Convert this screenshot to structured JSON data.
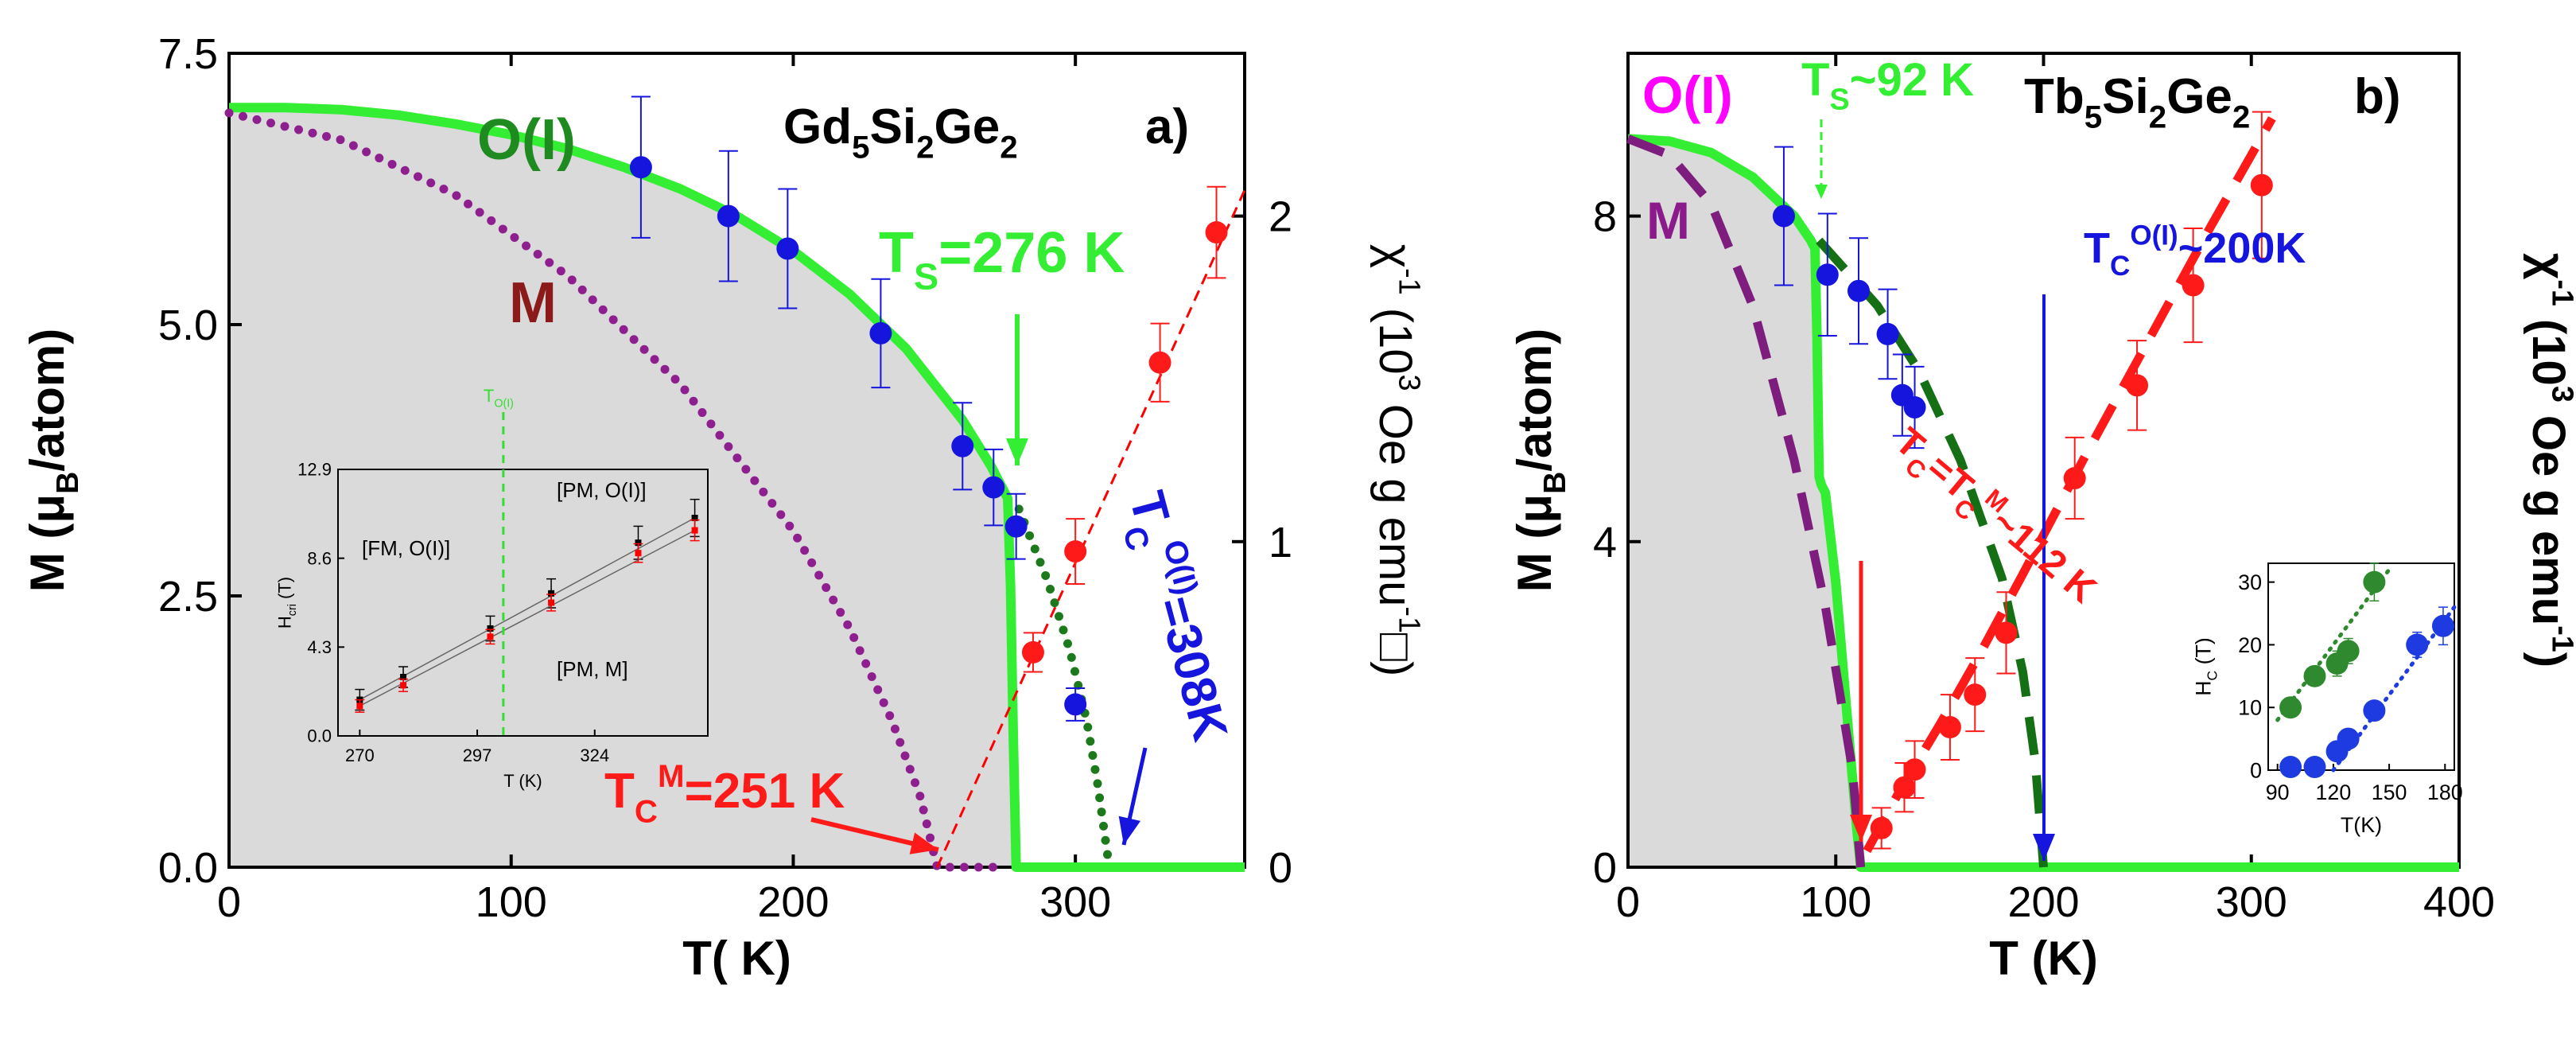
{
  "chart_data": [
    {
      "type": "line",
      "panel_label": "a)",
      "compound_parts": [
        "Gd",
        "5",
        "Si",
        "2",
        "Ge",
        "2"
      ],
      "xlabel": "T( K)",
      "ylabel_parts": [
        "M (μ",
        "B",
        "/atom)"
      ],
      "y2label_parts": [
        "χ",
        "-1",
        " (10",
        "3",
        " Oe g emu",
        "-1",
        "□)"
      ],
      "xlim": [
        0,
        360
      ],
      "ylim": [
        0,
        7.5
      ],
      "y2lim": [
        0,
        2.5
      ],
      "x_ticks": [
        0,
        100,
        200,
        300
      ],
      "y_ticks": [
        "0.0",
        "2.5",
        "5.0",
        "7.5"
      ],
      "y2_ticks": [
        "0",
        "1",
        "2"
      ],
      "phase_labels": {
        "oi": "O(I)",
        "m": "M",
        "ts": {
          "main": "T",
          "sub": "S",
          "rest": "=276 K"
        },
        "tc_oi": {
          "main": "T",
          "sub": "C",
          "sup": "O(I)",
          "rest": "=308K"
        },
        "tc_m": {
          "main": "T",
          "sub": "C",
          "sup": "M",
          "rest": "=251 K"
        }
      },
      "series": [
        {
          "color": "#33ee33",
          "style": "solid",
          "x": [
            0,
            20,
            40,
            60,
            80,
            100,
            120,
            140,
            160,
            180,
            200,
            220,
            240,
            260,
            270,
            276,
            277,
            278,
            279,
            280,
            360
          ],
          "y": [
            7.0,
            7.0,
            6.98,
            6.93,
            6.85,
            6.75,
            6.62,
            6.45,
            6.25,
            6.0,
            5.68,
            5.28,
            4.78,
            4.12,
            3.7,
            3.4,
            2.6,
            1.2,
            0.0,
            0.0,
            0.0
          ]
        },
        {
          "color": "#1c7a1c",
          "style": "dotted",
          "x": [
            280,
            290,
            298,
            304,
            308,
            312
          ],
          "y": [
            3.3,
            2.65,
            2.0,
            1.35,
            0.75,
            0.0
          ]
        },
        {
          "color": "#8e1f8e",
          "style": "dotted",
          "x": [
            0,
            40,
            80,
            120,
            160,
            200,
            220,
            235,
            245,
            251,
            275
          ],
          "y": [
            6.95,
            6.7,
            6.2,
            5.45,
            4.45,
            3.1,
            2.2,
            1.35,
            0.65,
            0.0,
            0.0
          ]
        },
        {
          "color": "#ff0000",
          "style": "dashed",
          "axis": "right",
          "x": [
            251,
            360
          ],
          "y": [
            0,
            2.08
          ]
        },
        {
          "color": "#1515dd",
          "style": "markers",
          "axis": "left",
          "x": [
            146,
            177,
            198,
            231,
            260,
            271,
            279,
            300
          ],
          "y": [
            6.45,
            6.0,
            5.7,
            4.92,
            3.88,
            3.5,
            3.14,
            1.5
          ],
          "err": [
            0.65,
            0.6,
            0.55,
            0.5,
            0.4,
            0.35,
            0.3,
            0.15
          ]
        },
        {
          "color": "#ff1a1a",
          "style": "markers",
          "axis": "right",
          "x": [
            285,
            300,
            330,
            350
          ],
          "y": [
            0.66,
            0.97,
            1.55,
            1.95
          ],
          "err": [
            0.06,
            0.1,
            0.12,
            0.14
          ]
        }
      ],
      "inset": {
        "xlabel": "T (K)",
        "ylabel": "H",
        "ylabel_sub": "cri",
        "ylabel_rest": " (T)",
        "xlim": [
          265,
          350
        ],
        "ylim": [
          0,
          12.9
        ],
        "x_ticks": [
          "270",
          "297",
          "324"
        ],
        "y_ticks": [
          "0.0",
          "4.3",
          "8.6",
          "12.9"
        ],
        "region_labels": {
          "fm_oi": "[FM, O(I)]",
          "pm_oi": "[PM, O(I)]",
          "pm_m": "[PM, M]"
        },
        "t_label": {
          "main": "T",
          "sub": "O(I)"
        },
        "vline_x": 303,
        "series": [
          {
            "color": "#000000",
            "x": [
              270,
              280,
              300,
              314,
              334,
              347
            ],
            "y": [
              1.75,
              2.85,
              5.2,
              6.9,
              9.35,
              10.55
            ],
            "err": [
              0.5,
              0.5,
              0.6,
              0.7,
              0.8,
              0.9
            ]
          },
          {
            "color": "#ff0000",
            "x": [
              270,
              280,
              300,
              314,
              334,
              347
            ],
            "y": [
              1.45,
              2.45,
              4.8,
              6.45,
              8.85,
              9.95
            ],
            "err": [
              0.3,
              0.3,
              0.35,
              0.4,
              0.45,
              0.5
            ]
          }
        ]
      }
    },
    {
      "type": "line",
      "panel_label": "b)",
      "compound_parts": [
        "Tb",
        "5",
        "Si",
        "2",
        "Ge",
        "2"
      ],
      "xlabel": "T (K)",
      "ylabel_parts": [
        "M (μ",
        "B",
        "/atom)"
      ],
      "y2label_parts": [
        "χ",
        "-1",
        " (10",
        "3",
        " Oe g emu",
        "-1",
        ")"
      ],
      "xlim": [
        0,
        400
      ],
      "ylim": [
        0,
        10
      ],
      "x_ticks": [
        0,
        100,
        200,
        300,
        400
      ],
      "y_ticks": [
        "0",
        "4",
        "8"
      ],
      "phase_labels": {
        "oi": "O(I)",
        "m": "M",
        "ts": {
          "main": "T",
          "sub": "S",
          "rest": "~92 K"
        },
        "tc_oi": {
          "main": "T",
          "sub": "C",
          "sup": "O(I)",
          "rest": "~200K"
        },
        "tc_m": {
          "main": "T",
          "sub": "C",
          "mid": "=T",
          "sub2": "C",
          "sup2": "M",
          "rest": "~112 K"
        }
      },
      "series": [
        {
          "color": "#33ee33",
          "style": "solid",
          "x": [
            0,
            20,
            40,
            60,
            80,
            88,
            90,
            91,
            92,
            93,
            95,
            100,
            105,
            110,
            112,
            400
          ],
          "y": [
            8.95,
            8.92,
            8.78,
            8.48,
            8.0,
            7.7,
            7.6,
            6.5,
            4.8,
            4.7,
            4.6,
            3.5,
            2.0,
            0.5,
            0.0,
            0.0
          ]
        },
        {
          "color": "#157015",
          "style": "dashed",
          "x": [
            92,
            120,
            140,
            160,
            180,
            190,
            196,
            200
          ],
          "y": [
            7.7,
            6.9,
            6.1,
            5.0,
            3.55,
            2.4,
            1.3,
            0.0
          ]
        },
        {
          "color": "#7d1d7d",
          "style": "dashed",
          "x": [
            0,
            20,
            40,
            60,
            80,
            95,
            108,
            112
          ],
          "y": [
            8.95,
            8.75,
            8.15,
            6.9,
            5.0,
            3.2,
            1.2,
            0.0
          ]
        },
        {
          "color": "#ff1a1a",
          "style": "dashed",
          "x": [
            115,
            130,
            150,
            170,
            190,
            220,
            250,
            280,
            310
          ],
          "y": [
            0.2,
            0.9,
            1.75,
            2.65,
            3.6,
            5.05,
            6.45,
            7.85,
            9.2
          ]
        },
        {
          "color": "#1515dd",
          "style": "markers",
          "x": [
            75,
            96,
            111,
            125,
            132,
            138
          ],
          "y": [
            8.0,
            7.28,
            7.08,
            6.55,
            5.8,
            5.65
          ],
          "err": [
            0.85,
            0.75,
            0.65,
            0.55,
            0.5,
            0.5
          ]
        },
        {
          "color": "#ff1a1a",
          "style": "markers",
          "x": [
            122,
            133,
            138,
            155,
            167,
            182,
            215,
            245,
            272,
            305
          ],
          "y": [
            0.48,
            0.98,
            1.2,
            1.72,
            2.12,
            2.88,
            4.78,
            5.92,
            7.15,
            8.38
          ],
          "err": [
            0.25,
            0.3,
            0.35,
            0.4,
            0.45,
            0.5,
            0.5,
            0.55,
            0.7,
            0.9
          ]
        }
      ],
      "inset": {
        "xlabel": "T(K)",
        "ylabel": "H",
        "ylabel_sub": "C",
        "ylabel_rest": " (T)",
        "xlim": [
          85,
          185
        ],
        "ylim": [
          0,
          33
        ],
        "x_ticks": [
          "90",
          "120",
          "150",
          "180"
        ],
        "y_ticks": [
          "0",
          "10",
          "20",
          "30"
        ],
        "series": [
          {
            "color": "#2f8a2f",
            "x": [
              97,
              110,
              122,
              128,
              142
            ],
            "y": [
              10,
              15,
              17,
              19,
              30
            ],
            "err": [
              1.5,
              1.5,
              2,
              2,
              3
            ],
            "fit": [
              [
                90,
                8
              ],
              [
                150,
                32
              ]
            ]
          },
          {
            "color": "#1d3be0",
            "x": [
              97,
              110,
              122,
              128,
              142,
              165,
              179
            ],
            "y": [
              0.5,
              0.5,
              3,
              5,
              9.5,
              20,
              23
            ],
            "err": [
              0.5,
              0.5,
              1,
              1.5,
              1.5,
              2,
              3
            ],
            "fit": [
              [
                120,
                0
              ],
              [
                185,
                26
              ]
            ]
          }
        ]
      }
    }
  ]
}
